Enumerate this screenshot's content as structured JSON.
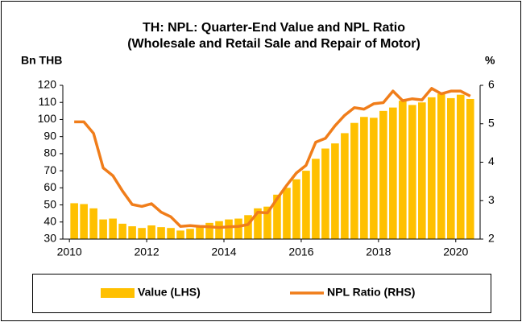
{
  "chart_data": {
    "type": "bar-line",
    "title": "TH: NPL: Quarter-End Value and NPL Ratio",
    "subtitle": "(Wholesale and Retail Sale and Repair of Motor)",
    "y_label": "Bn THB",
    "y2_label": "%",
    "x": [
      2010,
      2010.25,
      2010.5,
      2010.75,
      2011,
      2011.25,
      2011.5,
      2011.75,
      2012,
      2012.25,
      2012.5,
      2012.75,
      2013,
      2013.25,
      2013.5,
      2013.75,
      2014,
      2014.25,
      2014.5,
      2014.75,
      2015,
      2015.25,
      2015.5,
      2015.75,
      2016,
      2016.25,
      2016.5,
      2016.75,
      2017,
      2017.25,
      2017.5,
      2017.75,
      2018,
      2018.25,
      2018.5,
      2018.75,
      2019,
      2019.25,
      2019.5,
      2019.75,
      2020,
      2020.25
    ],
    "series": [
      {
        "name": "Value (LHS)",
        "color": "#ffc000",
        "type": "bar",
        "values": [
          51,
          50.5,
          48,
          41.5,
          42,
          39,
          37.5,
          36.5,
          38,
          37,
          36.5,
          35,
          36,
          38,
          39.5,
          40.5,
          41.5,
          42,
          44,
          48,
          49,
          56,
          60,
          65,
          70,
          77,
          83,
          86,
          92,
          98,
          101.5,
          101,
          105,
          107,
          111,
          108.5,
          110,
          113,
          115,
          112.5,
          114.5,
          112
        ]
      },
      {
        "name": "NPL Ratio (RHS)",
        "color": "#f07d1a",
        "type": "line",
        "axis": "y2",
        "values": [
          5.05,
          5.05,
          4.75,
          3.85,
          3.65,
          3.25,
          2.9,
          2.85,
          2.92,
          2.7,
          2.58,
          2.33,
          2.35,
          2.33,
          2.32,
          2.3,
          2.32,
          2.33,
          2.38,
          2.7,
          2.68,
          3.05,
          3.4,
          3.72,
          3.92,
          4.52,
          4.62,
          4.95,
          5.22,
          5.42,
          5.38,
          5.52,
          5.55,
          5.85,
          5.6,
          5.65,
          5.62,
          5.92,
          5.78,
          5.85,
          5.85,
          5.72
        ]
      }
    ],
    "xlim": [
      2009.83,
      2020.63
    ],
    "xticks": [
      2010,
      2012,
      2014,
      2016,
      2018,
      2020
    ],
    "ylim": [
      30,
      120
    ],
    "yticks": [
      30,
      40,
      50,
      60,
      70,
      80,
      90,
      100,
      110,
      120
    ],
    "y2lim": [
      2,
      6
    ],
    "y2ticks": [
      2,
      3,
      4,
      5,
      6
    ],
    "legend": "bottom"
  }
}
